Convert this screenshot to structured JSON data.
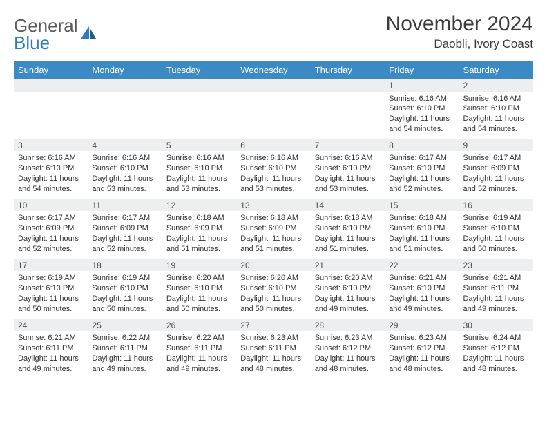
{
  "logo": {
    "word1": "General",
    "word2": "Blue"
  },
  "title": "November 2024",
  "location": "Daobli, Ivory Coast",
  "colors": {
    "header_bg": "#3b8ac4",
    "header_text": "#ffffff",
    "date_row_bg": "#eceef0",
    "date_row_border": "#3b8ac4",
    "body_text": "#333333",
    "logo_gray": "#5a5a5a",
    "logo_blue": "#2f7bbf"
  },
  "day_headers": [
    "Sunday",
    "Monday",
    "Tuesday",
    "Wednesday",
    "Thursday",
    "Friday",
    "Saturday"
  ],
  "weeks": [
    {
      "dates": [
        "",
        "",
        "",
        "",
        "",
        "1",
        "2"
      ],
      "cells": [
        null,
        null,
        null,
        null,
        null,
        {
          "sunrise": "Sunrise: 6:16 AM",
          "sunset": "Sunset: 6:10 PM",
          "day1": "Daylight: 11 hours",
          "day2": "and 54 minutes."
        },
        {
          "sunrise": "Sunrise: 6:16 AM",
          "sunset": "Sunset: 6:10 PM",
          "day1": "Daylight: 11 hours",
          "day2": "and 54 minutes."
        }
      ]
    },
    {
      "dates": [
        "3",
        "4",
        "5",
        "6",
        "7",
        "8",
        "9"
      ],
      "cells": [
        {
          "sunrise": "Sunrise: 6:16 AM",
          "sunset": "Sunset: 6:10 PM",
          "day1": "Daylight: 11 hours",
          "day2": "and 54 minutes."
        },
        {
          "sunrise": "Sunrise: 6:16 AM",
          "sunset": "Sunset: 6:10 PM",
          "day1": "Daylight: 11 hours",
          "day2": "and 53 minutes."
        },
        {
          "sunrise": "Sunrise: 6:16 AM",
          "sunset": "Sunset: 6:10 PM",
          "day1": "Daylight: 11 hours",
          "day2": "and 53 minutes."
        },
        {
          "sunrise": "Sunrise: 6:16 AM",
          "sunset": "Sunset: 6:10 PM",
          "day1": "Daylight: 11 hours",
          "day2": "and 53 minutes."
        },
        {
          "sunrise": "Sunrise: 6:16 AM",
          "sunset": "Sunset: 6:10 PM",
          "day1": "Daylight: 11 hours",
          "day2": "and 53 minutes."
        },
        {
          "sunrise": "Sunrise: 6:17 AM",
          "sunset": "Sunset: 6:10 PM",
          "day1": "Daylight: 11 hours",
          "day2": "and 52 minutes."
        },
        {
          "sunrise": "Sunrise: 6:17 AM",
          "sunset": "Sunset: 6:09 PM",
          "day1": "Daylight: 11 hours",
          "day2": "and 52 minutes."
        }
      ]
    },
    {
      "dates": [
        "10",
        "11",
        "12",
        "13",
        "14",
        "15",
        "16"
      ],
      "cells": [
        {
          "sunrise": "Sunrise: 6:17 AM",
          "sunset": "Sunset: 6:09 PM",
          "day1": "Daylight: 11 hours",
          "day2": "and 52 minutes."
        },
        {
          "sunrise": "Sunrise: 6:17 AM",
          "sunset": "Sunset: 6:09 PM",
          "day1": "Daylight: 11 hours",
          "day2": "and 52 minutes."
        },
        {
          "sunrise": "Sunrise: 6:18 AM",
          "sunset": "Sunset: 6:09 PM",
          "day1": "Daylight: 11 hours",
          "day2": "and 51 minutes."
        },
        {
          "sunrise": "Sunrise: 6:18 AM",
          "sunset": "Sunset: 6:09 PM",
          "day1": "Daylight: 11 hours",
          "day2": "and 51 minutes."
        },
        {
          "sunrise": "Sunrise: 6:18 AM",
          "sunset": "Sunset: 6:10 PM",
          "day1": "Daylight: 11 hours",
          "day2": "and 51 minutes."
        },
        {
          "sunrise": "Sunrise: 6:18 AM",
          "sunset": "Sunset: 6:10 PM",
          "day1": "Daylight: 11 hours",
          "day2": "and 51 minutes."
        },
        {
          "sunrise": "Sunrise: 6:19 AM",
          "sunset": "Sunset: 6:10 PM",
          "day1": "Daylight: 11 hours",
          "day2": "and 50 minutes."
        }
      ]
    },
    {
      "dates": [
        "17",
        "18",
        "19",
        "20",
        "21",
        "22",
        "23"
      ],
      "cells": [
        {
          "sunrise": "Sunrise: 6:19 AM",
          "sunset": "Sunset: 6:10 PM",
          "day1": "Daylight: 11 hours",
          "day2": "and 50 minutes."
        },
        {
          "sunrise": "Sunrise: 6:19 AM",
          "sunset": "Sunset: 6:10 PM",
          "day1": "Daylight: 11 hours",
          "day2": "and 50 minutes."
        },
        {
          "sunrise": "Sunrise: 6:20 AM",
          "sunset": "Sunset: 6:10 PM",
          "day1": "Daylight: 11 hours",
          "day2": "and 50 minutes."
        },
        {
          "sunrise": "Sunrise: 6:20 AM",
          "sunset": "Sunset: 6:10 PM",
          "day1": "Daylight: 11 hours",
          "day2": "and 50 minutes."
        },
        {
          "sunrise": "Sunrise: 6:20 AM",
          "sunset": "Sunset: 6:10 PM",
          "day1": "Daylight: 11 hours",
          "day2": "and 49 minutes."
        },
        {
          "sunrise": "Sunrise: 6:21 AM",
          "sunset": "Sunset: 6:10 PM",
          "day1": "Daylight: 11 hours",
          "day2": "and 49 minutes."
        },
        {
          "sunrise": "Sunrise: 6:21 AM",
          "sunset": "Sunset: 6:11 PM",
          "day1": "Daylight: 11 hours",
          "day2": "and 49 minutes."
        }
      ]
    },
    {
      "dates": [
        "24",
        "25",
        "26",
        "27",
        "28",
        "29",
        "30"
      ],
      "cells": [
        {
          "sunrise": "Sunrise: 6:21 AM",
          "sunset": "Sunset: 6:11 PM",
          "day1": "Daylight: 11 hours",
          "day2": "and 49 minutes."
        },
        {
          "sunrise": "Sunrise: 6:22 AM",
          "sunset": "Sunset: 6:11 PM",
          "day1": "Daylight: 11 hours",
          "day2": "and 49 minutes."
        },
        {
          "sunrise": "Sunrise: 6:22 AM",
          "sunset": "Sunset: 6:11 PM",
          "day1": "Daylight: 11 hours",
          "day2": "and 49 minutes."
        },
        {
          "sunrise": "Sunrise: 6:23 AM",
          "sunset": "Sunset: 6:11 PM",
          "day1": "Daylight: 11 hours",
          "day2": "and 48 minutes."
        },
        {
          "sunrise": "Sunrise: 6:23 AM",
          "sunset": "Sunset: 6:12 PM",
          "day1": "Daylight: 11 hours",
          "day2": "and 48 minutes."
        },
        {
          "sunrise": "Sunrise: 6:23 AM",
          "sunset": "Sunset: 6:12 PM",
          "day1": "Daylight: 11 hours",
          "day2": "and 48 minutes."
        },
        {
          "sunrise": "Sunrise: 6:24 AM",
          "sunset": "Sunset: 6:12 PM",
          "day1": "Daylight: 11 hours",
          "day2": "and 48 minutes."
        }
      ]
    }
  ]
}
